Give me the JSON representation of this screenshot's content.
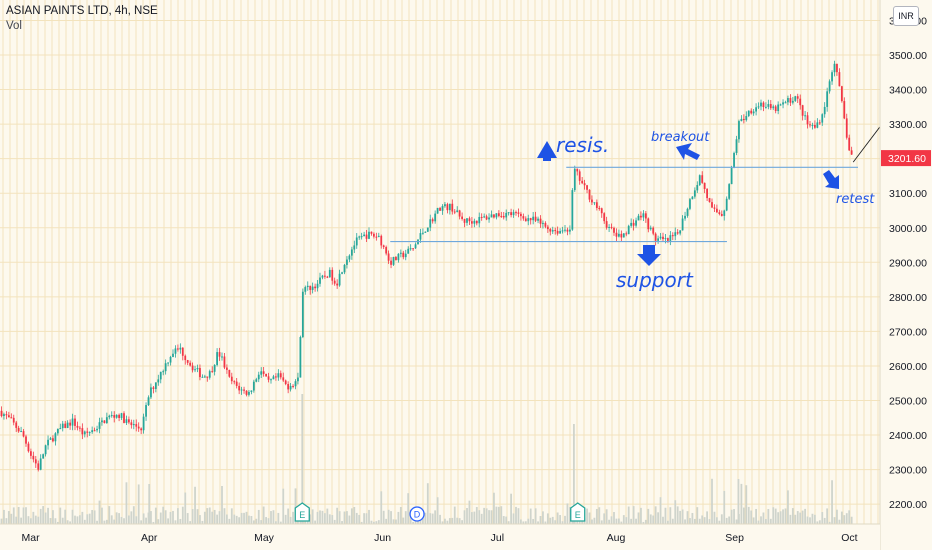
{
  "header": {
    "symbol_line": "ASIAN PAINTS LTD, 4h, NSE",
    "volume_label": "Vol"
  },
  "currency_button": "INR",
  "price_badge": {
    "value": 3201.6,
    "label": "3201.60",
    "color": "#f23645"
  },
  "colors": {
    "up": "#26a69a",
    "down": "#f23645",
    "annotation": "#1e53e5",
    "hline": "#6fa8dc",
    "volume": "#cfd4cc",
    "grid": "#f3e3bd",
    "background": "#fdf9ee"
  },
  "annotations": {
    "resistance": "resis.",
    "support": "support",
    "breakout": "breakout",
    "retest": "retest"
  },
  "events": [
    {
      "label": "E",
      "date": "2021-05-11",
      "kind": "earnings"
    },
    {
      "label": "D",
      "date": "2021-06-10",
      "kind": "dividend"
    },
    {
      "label": "E",
      "date": "2021-07-22",
      "kind": "earnings"
    }
  ],
  "chart_data": {
    "type": "candlestick",
    "title": "ASIAN PAINTS LTD, 4h, NSE",
    "x_axis": {
      "type": "date",
      "range": [
        "2021-02-21",
        "2021-10-09"
      ],
      "tick_labels": [
        {
          "label": "Mar",
          "date": "2021-03-01"
        },
        {
          "label": "Apr",
          "date": "2021-04-01"
        },
        {
          "label": "May",
          "date": "2021-05-01"
        },
        {
          "label": "Jun",
          "date": "2021-06-01"
        },
        {
          "label": "Jul",
          "date": "2021-07-01"
        },
        {
          "label": "Aug",
          "date": "2021-08-01"
        },
        {
          "label": "Sep",
          "date": "2021-09-01"
        },
        {
          "label": "Oct",
          "date": "2021-10-01"
        }
      ]
    },
    "y_axis": {
      "position": "right",
      "range": [
        2160,
        3590
      ],
      "ticks": [
        2200,
        2300,
        2400,
        2500,
        2600,
        2700,
        2800,
        2900,
        3000,
        3100,
        3200,
        3300,
        3400,
        3500,
        3600
      ],
      "tick_labels": [
        "2200.00",
        "2300.00",
        "2400.00",
        "2500.00",
        "2600.00",
        "2700.00",
        "2800.00",
        "2900.00",
        "3000.00",
        "3100.00",
        "3200.00",
        "3300.00",
        "3400.00",
        "3500.00",
        "3600.00"
      ]
    },
    "grid": true,
    "price_path": [
      [
        "2021-02-21",
        2470
      ],
      [
        "2021-02-24",
        2440
      ],
      [
        "2021-02-27",
        2400
      ],
      [
        "2021-03-01",
        2345
      ],
      [
        "2021-03-03",
        2305
      ],
      [
        "2021-03-05",
        2370
      ],
      [
        "2021-03-07",
        2395
      ],
      [
        "2021-03-09",
        2420
      ],
      [
        "2021-03-12",
        2440
      ],
      [
        "2021-03-15",
        2400
      ],
      [
        "2021-03-18",
        2420
      ],
      [
        "2021-03-21",
        2450
      ],
      [
        "2021-03-24",
        2460
      ],
      [
        "2021-03-27",
        2430
      ],
      [
        "2021-03-30",
        2420
      ],
      [
        "2021-04-01",
        2520
      ],
      [
        "2021-04-03",
        2560
      ],
      [
        "2021-04-05",
        2600
      ],
      [
        "2021-04-07",
        2640
      ],
      [
        "2021-04-09",
        2650
      ],
      [
        "2021-04-12",
        2600
      ],
      [
        "2021-04-15",
        2570
      ],
      [
        "2021-04-17",
        2580
      ],
      [
        "2021-04-19",
        2640
      ],
      [
        "2021-04-20",
        2620
      ],
      [
        "2021-04-22",
        2560
      ],
      [
        "2021-04-25",
        2530
      ],
      [
        "2021-04-27",
        2520
      ],
      [
        "2021-04-30",
        2590
      ],
      [
        "2021-05-02",
        2550
      ],
      [
        "2021-05-05",
        2570
      ],
      [
        "2021-05-07",
        2540
      ],
      [
        "2021-05-10",
        2560
      ],
      [
        "2021-05-11",
        2820
      ],
      [
        "2021-05-14",
        2830
      ],
      [
        "2021-05-18",
        2870
      ],
      [
        "2021-05-20",
        2840
      ],
      [
        "2021-05-22",
        2900
      ],
      [
        "2021-05-25",
        2960
      ],
      [
        "2021-05-28",
        2980
      ],
      [
        "2021-05-31",
        2975
      ],
      [
        "2021-06-03",
        2900
      ],
      [
        "2021-06-06",
        2920
      ],
      [
        "2021-06-09",
        2940
      ],
      [
        "2021-06-11",
        2980
      ],
      [
        "2021-06-13",
        3010
      ],
      [
        "2021-06-16",
        3060
      ],
      [
        "2021-06-19",
        3060
      ],
      [
        "2021-06-22",
        3020
      ],
      [
        "2021-06-25",
        3020
      ],
      [
        "2021-06-28",
        3030
      ],
      [
        "2021-07-01",
        3040
      ],
      [
        "2021-07-05",
        3040
      ],
      [
        "2021-07-08",
        3030
      ],
      [
        "2021-07-11",
        3020
      ],
      [
        "2021-07-14",
        3000
      ],
      [
        "2021-07-17",
        2990
      ],
      [
        "2021-07-20",
        3000
      ],
      [
        "2021-07-21",
        3170
      ],
      [
        "2021-07-24",
        3110
      ],
      [
        "2021-07-27",
        3060
      ],
      [
        "2021-07-30",
        3000
      ],
      [
        "2021-08-02",
        2970
      ],
      [
        "2021-08-05",
        3010
      ],
      [
        "2021-08-08",
        3040
      ],
      [
        "2021-08-11",
        2970
      ],
      [
        "2021-08-14",
        2960
      ],
      [
        "2021-08-17",
        2980
      ],
      [
        "2021-08-19",
        3040
      ],
      [
        "2021-08-21",
        3100
      ],
      [
        "2021-08-23",
        3150
      ],
      [
        "2021-08-26",
        3050
      ],
      [
        "2021-08-29",
        3040
      ],
      [
        "2021-08-31",
        3150
      ],
      [
        "2021-09-02",
        3300
      ],
      [
        "2021-09-05",
        3340
      ],
      [
        "2021-09-08",
        3360
      ],
      [
        "2021-09-11",
        3340
      ],
      [
        "2021-09-14",
        3360
      ],
      [
        "2021-09-17",
        3380
      ],
      [
        "2021-09-20",
        3300
      ],
      [
        "2021-09-22",
        3290
      ],
      [
        "2021-09-24",
        3330
      ],
      [
        "2021-09-26",
        3430
      ],
      [
        "2021-09-27",
        3490
      ],
      [
        "2021-09-29",
        3360
      ],
      [
        "2021-10-01",
        3220
      ],
      [
        "2021-10-02",
        3201.6
      ]
    ],
    "notable_levels": {
      "resistance": {
        "value": 3175,
        "from": "2021-07-19",
        "to": "2021-10-12"
      },
      "support": {
        "value": 2960,
        "from": "2021-06-03",
        "to": "2021-08-30"
      }
    },
    "projection": {
      "from": [
        "2021-10-02",
        3190
      ],
      "to": [
        "2021-10-15",
        3380
      ]
    },
    "events": [
      "2021-05-11",
      "2021-06-10",
      "2021-07-22"
    ]
  }
}
